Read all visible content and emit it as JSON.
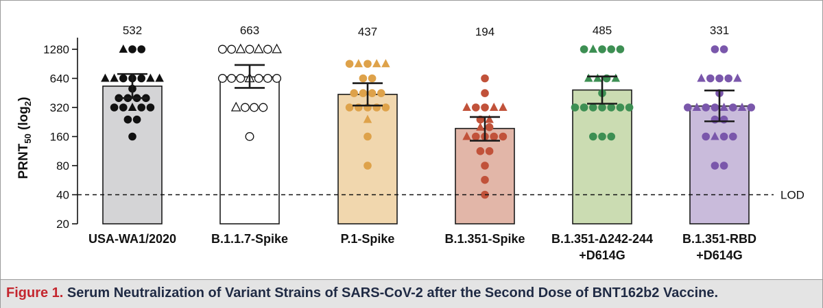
{
  "caption": {
    "figure_label": "Figure 1.",
    "text": "Serum Neutralization of Variant Strains of SARS-CoV-2 after the Second Dose of BNT162b2 Vaccine."
  },
  "chart_data": {
    "type": "bar",
    "title": "",
    "ylabel": "PRNT50 (log2)",
    "ylabel_main": "PRNT",
    "ylabel_sub": "50",
    "ylabel_rest": " (log",
    "ylabel_sub2": "2",
    "ylabel_close": ")",
    "yscale": "log2",
    "ylim": [
      20,
      1600
    ],
    "yticks": [
      20,
      40,
      80,
      160,
      320,
      640,
      1280
    ],
    "reference_line": {
      "value": 40,
      "label": "LOD",
      "style": "dashed"
    },
    "categories": [
      "USA-WA1/2020",
      "B.1.1.7-Spike",
      "P.1-Spike",
      "B.1.351-Spike",
      "B.1.351-Δ242-244 +D614G",
      "B.1.351-RBD +D614G"
    ],
    "category_label_lines": [
      [
        "USA-WA1/2020"
      ],
      [
        "B.1.1.7-Spike"
      ],
      [
        "P.1-Spike"
      ],
      [
        "B.1.351-Spike"
      ],
      [
        "B.1.351-Δ242-244",
        "+D614G"
      ],
      [
        "B.1.351-RBD",
        "+D614G"
      ]
    ],
    "values": [
      532,
      663,
      437,
      194,
      485,
      331
    ],
    "value_labels": [
      "532",
      "663",
      "437",
      "194",
      "485",
      "331"
    ],
    "error_bars": [
      {
        "low": 400,
        "high": 710
      },
      {
        "low": 510,
        "high": 880
      },
      {
        "low": 335,
        "high": 570
      },
      {
        "low": 145,
        "high": 255
      },
      {
        "low": 350,
        "high": 670
      },
      {
        "low": 230,
        "high": 480
      }
    ],
    "colors": {
      "bar_fill": [
        "#d4d4d6",
        "#ffffff",
        "#f1d7ae",
        "#e2b6a8",
        "#cbdcb2",
        "#c9bbdb"
      ],
      "marker": [
        "#111111",
        "#111111",
        "#dea24a",
        "#c1523a",
        "#3d8f53",
        "#7a57ab"
      ],
      "marker_style": [
        "filled",
        "open",
        "filled",
        "filled",
        "filled",
        "filled"
      ]
    },
    "points": [
      [
        {
          "y": 1280,
          "shapes": [
            "triangle",
            "circle",
            "circle"
          ]
        },
        {
          "y": 640,
          "shapes": [
            "triangle",
            "triangle",
            "circle",
            "circle",
            "circle",
            "triangle",
            "triangle"
          ]
        },
        {
          "y": 500,
          "shapes": [
            "circle"
          ]
        },
        {
          "y": 400,
          "shapes": [
            "circle",
            "circle",
            "circle",
            "circle"
          ]
        },
        {
          "y": 320,
          "shapes": [
            "circle",
            "circle",
            "triangle",
            "circle",
            "circle"
          ]
        },
        {
          "y": 240,
          "shapes": [
            "circle",
            "circle"
          ]
        },
        {
          "y": 160,
          "shapes": [
            "circle"
          ]
        }
      ],
      [
        {
          "y": 1280,
          "shapes": [
            "circle",
            "circle",
            "triangle",
            "circle",
            "triangle",
            "circle",
            "triangle"
          ]
        },
        {
          "y": 640,
          "shapes": [
            "circle",
            "circle",
            "circle",
            "triangle",
            "circle",
            "circle",
            "circle"
          ]
        },
        {
          "y": 320,
          "shapes": [
            "triangle",
            "circle",
            "circle",
            "circle"
          ]
        },
        {
          "y": 160,
          "shapes": [
            "circle"
          ]
        }
      ],
      [
        {
          "y": 905,
          "shapes": [
            "circle",
            "triangle",
            "circle",
            "triangle",
            "triangle"
          ]
        },
        {
          "y": 640,
          "shapes": [
            "circle",
            "circle"
          ]
        },
        {
          "y": 450,
          "shapes": [
            "circle",
            "circle",
            "circle",
            "circle"
          ]
        },
        {
          "y": 320,
          "shapes": [
            "circle",
            "circle",
            "circle",
            "circle",
            "circle"
          ]
        },
        {
          "y": 240,
          "shapes": [
            "triangle"
          ]
        },
        {
          "y": 160,
          "shapes": [
            "circle"
          ]
        },
        {
          "y": 80,
          "shapes": [
            "circle"
          ]
        }
      ],
      [
        {
          "y": 640,
          "shapes": [
            "circle"
          ]
        },
        {
          "y": 450,
          "shapes": [
            "circle"
          ]
        },
        {
          "y": 320,
          "shapes": [
            "triangle",
            "circle",
            "circle",
            "triangle",
            "triangle"
          ]
        },
        {
          "y": 240,
          "shapes": [
            "circle",
            "triangle"
          ]
        },
        {
          "y": 200,
          "shapes": [
            "triangle",
            "circle"
          ]
        },
        {
          "y": 160,
          "shapes": [
            "triangle",
            "circle",
            "circle",
            "circle",
            "circle"
          ]
        },
        {
          "y": 113,
          "shapes": [
            "circle",
            "circle"
          ]
        },
        {
          "y": 80,
          "shapes": [
            "circle"
          ]
        },
        {
          "y": 57,
          "shapes": [
            "circle"
          ]
        },
        {
          "y": 40,
          "shapes": [
            "circle"
          ]
        }
      ],
      [
        {
          "y": 1280,
          "shapes": [
            "circle",
            "triangle",
            "circle",
            "circle",
            "circle"
          ]
        },
        {
          "y": 640,
          "shapes": [
            "triangle",
            "triangle",
            "circle",
            "triangle"
          ]
        },
        {
          "y": 450,
          "shapes": [
            "circle"
          ]
        },
        {
          "y": 320,
          "shapes": [
            "circle",
            "circle",
            "circle",
            "circle",
            "circle",
            "circle",
            "circle"
          ]
        },
        {
          "y": 160,
          "shapes": [
            "circle",
            "circle",
            "circle"
          ]
        }
      ],
      [
        {
          "y": 1280,
          "shapes": [
            "circle",
            "circle"
          ]
        },
        {
          "y": 640,
          "shapes": [
            "triangle",
            "circle",
            "circle",
            "circle",
            "triangle"
          ]
        },
        {
          "y": 450,
          "shapes": [
            "circle"
          ]
        },
        {
          "y": 320,
          "shapes": [
            "circle",
            "triangle",
            "circle",
            "circle",
            "triangle",
            "circle",
            "triangle",
            "circle"
          ]
        },
        {
          "y": 240,
          "shapes": [
            "circle",
            "circle"
          ]
        },
        {
          "y": 160,
          "shapes": [
            "circle",
            "triangle",
            "circle",
            "circle"
          ]
        },
        {
          "y": 80,
          "shapes": [
            "circle",
            "circle"
          ]
        }
      ]
    ],
    "grid": false,
    "legend": "none"
  }
}
